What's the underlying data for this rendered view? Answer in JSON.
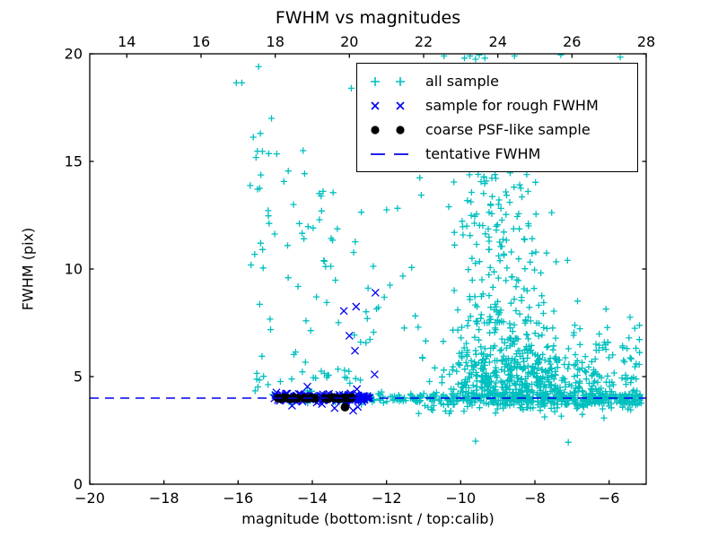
{
  "title": "FWHM vs magnitudes",
  "axes": {
    "xlabel": "magnitude (bottom:isnt / top:calib)",
    "ylabel": "FWHM (pix)",
    "x_bottom": {
      "lim": [
        -20,
        -5
      ],
      "ticks": [
        -20,
        -18,
        -16,
        -14,
        -12,
        -10,
        -8,
        -6
      ],
      "tick_labels": [
        "−20",
        "−18",
        "−16",
        "−14",
        "−12",
        "−10",
        "−8",
        "−6"
      ]
    },
    "x_top": {
      "lim": [
        13,
        28
      ],
      "ticks": [
        14,
        16,
        18,
        20,
        22,
        24,
        26,
        28
      ],
      "tick_labels": [
        "14",
        "16",
        "18",
        "20",
        "22",
        "24",
        "26",
        "28"
      ]
    },
    "y": {
      "lim": [
        0,
        20
      ],
      "ticks": [
        0,
        5,
        10,
        15,
        20
      ],
      "tick_labels": [
        "0",
        "5",
        "10",
        "15",
        "20"
      ]
    }
  },
  "colors": {
    "all_sample": "#00bfbf",
    "rough_fwhm": "#0000ee",
    "psf_like": "#000000",
    "tentative_line": "#0000ee",
    "axis": "#000000",
    "background": "#ffffff"
  },
  "chart_data": {
    "type": "scatter",
    "seed": 20240601,
    "series": [
      {
        "name": "all sample",
        "marker": "plus",
        "color_key": "all_sample",
        "clusters": [
          {
            "count": 260,
            "x": {
              "dist": "uniform",
              "min": -12.45,
              "max": -5.05
            },
            "y": {
              "dist": "normal",
              "mean": 4.02,
              "sd": 0.13
            }
          },
          {
            "count": 160,
            "x": {
              "dist": "uniform",
              "min": -10.0,
              "max": -5.1
            },
            "y": {
              "dist": "normal",
              "mean": 4.0,
              "sd": 0.18
            }
          },
          {
            "count": 90,
            "x": {
              "dist": "uniform",
              "min": -11.2,
              "max": -5.2
            },
            "y": {
              "dist": "halfnorm",
              "base": 3.9,
              "sd": 0.35,
              "dir": -1,
              "min": 2.95,
              "max": 3.95
            }
          },
          {
            "count": 300,
            "x": {
              "dist": "normal",
              "mean": -8.3,
              "sd": 1.15,
              "min": -10.9,
              "max": -5.1
            },
            "y": {
              "dist": "halfnorm",
              "base": 4.15,
              "sd": 1.1,
              "dir": 1,
              "min": 4.15,
              "max": 8.0
            }
          },
          {
            "count": 260,
            "x": {
              "dist": "normal",
              "mean": -8.9,
              "sd": 0.75,
              "min": -10.6,
              "max": -6.6
            },
            "y": {
              "dist": "halfnorm",
              "base": 4.5,
              "sd": 3.6,
              "dir": 1,
              "min": 4.5,
              "max": 14.6
            }
          },
          {
            "count": 55,
            "x": {
              "dist": "normal",
              "mean": -9.0,
              "sd": 0.6,
              "min": -10.3,
              "max": -7.5
            },
            "y": {
              "dist": "uniform",
              "min": 11.0,
              "max": 14.5
            }
          },
          {
            "count": 70,
            "x": {
              "dist": "uniform",
              "min": -7.0,
              "max": -5.15
            },
            "y": {
              "dist": "halfnorm",
              "base": 4.3,
              "sd": 1.6,
              "dir": 1,
              "min": 4.3,
              "max": 9.5
            }
          },
          {
            "count": 26,
            "x": {
              "dist": "normal",
              "mean": -15.35,
              "sd": 0.18
            },
            "y": {
              "dist": "uniform",
              "min": 4.3,
              "max": 16.5
            }
          },
          {
            "count": 14,
            "x": {
              "dist": "normal",
              "mean": -14.35,
              "sd": 0.35
            },
            "y": {
              "dist": "uniform",
              "min": 9.5,
              "max": 15.6
            }
          },
          {
            "count": 22,
            "x": {
              "dist": "normal",
              "mean": -13.55,
              "sd": 0.3
            },
            "y": {
              "dist": "uniform",
              "min": 4.4,
              "max": 14.2
            }
          },
          {
            "count": 16,
            "x": {
              "dist": "normal",
              "mean": -12.4,
              "sd": 0.45,
              "min": -13.0,
              "max": -11.6
            },
            "y": {
              "dist": "uniform",
              "min": 4.4,
              "max": 13.0
            }
          },
          {
            "count": 10,
            "x": {
              "dist": "uniform",
              "min": -11.6,
              "max": -10.8
            },
            "y": {
              "dist": "uniform",
              "min": 5.0,
              "max": 14.4
            }
          },
          {
            "count": 25,
            "x": {
              "dist": "uniform",
              "min": -15.6,
              "max": -12.6
            },
            "y": {
              "dist": "halfnorm",
              "base": 4.3,
              "sd": 1.6,
              "dir": 1,
              "min": 4.3,
              "max": 9.5
            }
          },
          {
            "count": 40,
            "x": {
              "dist": "uniform",
              "min": -15.1,
              "max": -12.45
            },
            "y": {
              "dist": "normal",
              "mean": 4.0,
              "sd": 0.12
            }
          }
        ],
        "points": [
          [
            -15.45,
            19.4
          ],
          [
            -16.05,
            18.65
          ],
          [
            -15.9,
            18.65
          ],
          [
            -12.95,
            18.4
          ],
          [
            -15.1,
            17.0
          ],
          [
            -15.4,
            16.3
          ],
          [
            -14.25,
            15.5
          ],
          [
            -10.45,
            19.9
          ],
          [
            -9.9,
            19.8
          ],
          [
            -9.75,
            19.9
          ],
          [
            -9.6,
            19.75
          ],
          [
            -9.5,
            19.95
          ],
          [
            -9.35,
            19.8
          ],
          [
            -8.55,
            19.9
          ],
          [
            -7.3,
            19.95
          ],
          [
            -5.7,
            19.85
          ],
          [
            -9.6,
            2.0
          ],
          [
            -7.1,
            1.95
          ]
        ]
      },
      {
        "name": "sample for rough FWHM",
        "marker": "x",
        "color_key": "rough_fwhm",
        "clusters": [
          {
            "count": 110,
            "x": {
              "dist": "uniform",
              "min": -15.05,
              "max": -12.42
            },
            "y": {
              "dist": "normal",
              "mean": 4.02,
              "sd": 0.1
            }
          },
          {
            "count": 30,
            "x": {
              "dist": "uniform",
              "min": -14.95,
              "max": -12.5
            },
            "y": {
              "dist": "normal",
              "mean": 4.0,
              "sd": 0.2
            }
          }
        ],
        "points": [
          [
            -12.3,
            8.9
          ],
          [
            -12.82,
            8.25
          ],
          [
            -13.15,
            8.05
          ],
          [
            -13.0,
            6.9
          ],
          [
            -12.85,
            6.2
          ],
          [
            -12.32,
            5.1
          ],
          [
            -12.9,
            3.42
          ]
        ]
      },
      {
        "name": "coarse PSF-like sample",
        "marker": "dot",
        "color_key": "psf_like",
        "clusters": [],
        "points": [
          [
            -14.93,
            4.0
          ],
          [
            -14.85,
            3.97
          ],
          [
            -14.77,
            4.03
          ],
          [
            -14.68,
            4.0
          ],
          [
            -14.58,
            3.96
          ],
          [
            -14.48,
            4.02
          ],
          [
            -14.4,
            3.99
          ],
          [
            -14.22,
            4.01
          ],
          [
            -14.13,
            3.98
          ],
          [
            -14.03,
            4.02
          ],
          [
            -13.93,
            3.99
          ],
          [
            -13.66,
            4.0
          ],
          [
            -13.57,
            3.97
          ],
          [
            -13.48,
            4.03
          ],
          [
            -13.38,
            4.0
          ],
          [
            -13.27,
            3.96
          ],
          [
            -13.15,
            4.01
          ],
          [
            -13.04,
            3.99
          ],
          [
            -12.94,
            4.02
          ],
          [
            -13.12,
            3.58
          ]
        ]
      }
    ],
    "lines": [
      {
        "name": "tentative FWHM",
        "y": 4.0,
        "style": "dashed",
        "color_key": "tentative_line"
      }
    ],
    "legend": {
      "position": "upper right",
      "entries": [
        {
          "label": "all sample",
          "marker": "plus",
          "color_key": "all_sample"
        },
        {
          "label": "sample for rough FWHM",
          "marker": "x",
          "color_key": "rough_fwhm"
        },
        {
          "label": "coarse PSF-like sample",
          "marker": "dot",
          "color_key": "psf_like"
        },
        {
          "label": "tentative FWHM",
          "marker": "dash",
          "color_key": "tentative_line"
        }
      ]
    },
    "grid": false
  }
}
